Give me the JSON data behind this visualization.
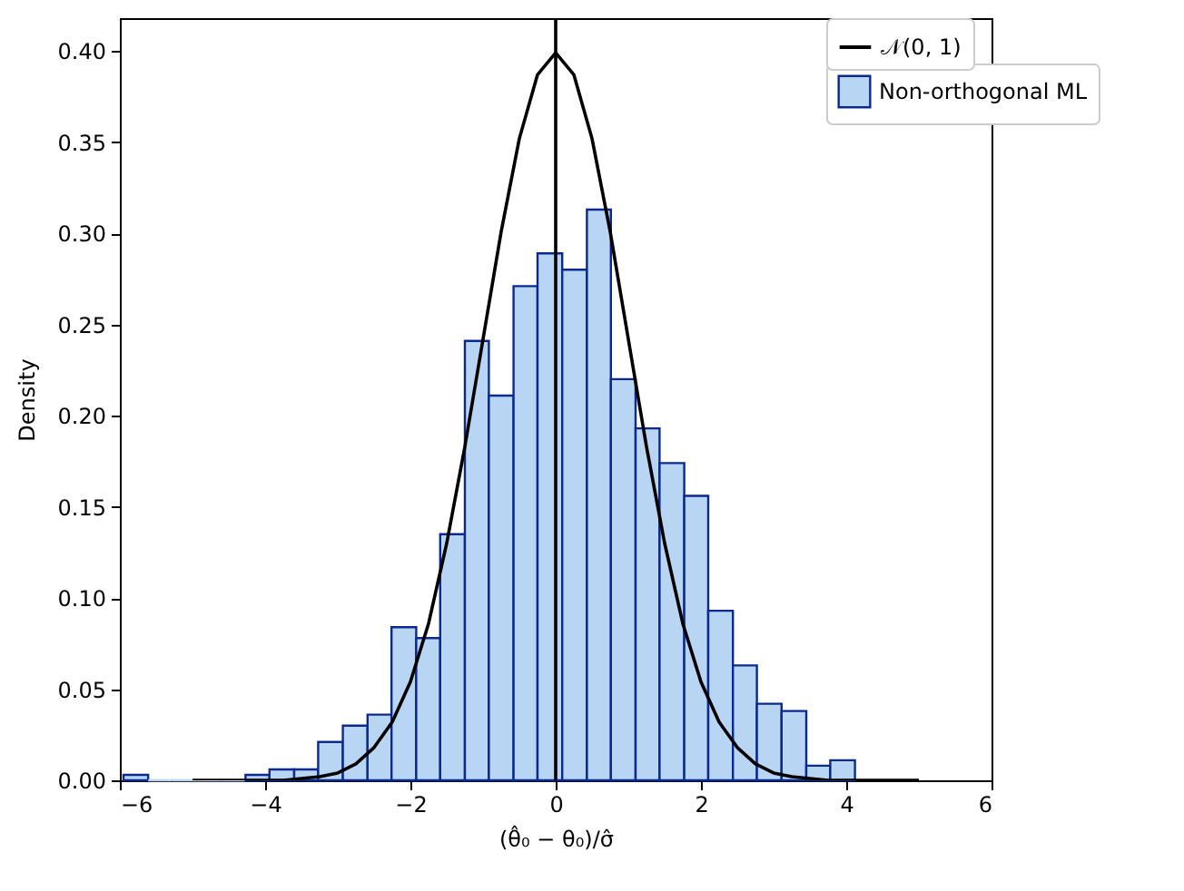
{
  "chart_data": {
    "type": "histogram",
    "xlabel": "(θ̂₀ − θ₀)/σ̂",
    "ylabel": "Density",
    "xlim": [
      -6,
      6
    ],
    "ylim": [
      0,
      0.418
    ],
    "xticks": [
      {
        "value": -6,
        "label": "−6"
      },
      {
        "value": -4,
        "label": "−4"
      },
      {
        "value": -2,
        "label": "−2"
      },
      0,
      2,
      4,
      6
    ],
    "yticks": [
      {
        "value": 0,
        "label": "0.00"
      },
      {
        "value": 0.05,
        "label": "0.05"
      },
      {
        "value": 0.1,
        "label": "0.10"
      },
      {
        "value": 0.15,
        "label": "0.15"
      },
      {
        "value": 0.2,
        "label": "0.20"
      },
      {
        "value": 0.25,
        "label": "0.25"
      },
      {
        "value": 0.3,
        "label": "0.30"
      },
      {
        "value": 0.35,
        "label": "0.35"
      },
      {
        "value": 0.4,
        "label": "0.40"
      }
    ],
    "bins": [
      -5.95,
      -5.61,
      -5.28,
      -4.94,
      -4.61,
      -4.27,
      -3.94,
      -3.6,
      -3.27,
      -2.93,
      -2.59,
      -2.26,
      -1.92,
      -1.59,
      -1.25,
      -0.92,
      -0.58,
      -0.25,
      0.09,
      0.43,
      0.76,
      1.1,
      1.43,
      1.77,
      2.1,
      2.44,
      2.77,
      3.11,
      3.45,
      3.78,
      4.12
    ],
    "legend": "top right",
    "ref_lines": [
      {
        "axis": "x",
        "value": 0,
        "color": "#000000"
      }
    ],
    "series": [
      {
        "type": "line",
        "name": "𝒩(0, 1)",
        "color": "#000000",
        "x": [
          -5,
          -4.5,
          -4,
          -3.75,
          -3.5,
          -3.25,
          -3,
          -2.75,
          -2.5,
          -2.25,
          -2,
          -1.75,
          -1.5,
          -1.25,
          -1,
          -0.75,
          -0.5,
          -0.25,
          0,
          0.25,
          0.5,
          0.75,
          1,
          1.25,
          1.5,
          1.75,
          2,
          2.25,
          2.5,
          2.75,
          3,
          3.25,
          3.5,
          3.75,
          4,
          4.5,
          5
        ],
        "values": [
          0,
          0,
          0,
          0,
          0.001,
          0.002,
          0.004,
          0.009,
          0.018,
          0.032,
          0.054,
          0.086,
          0.13,
          0.183,
          0.242,
          0.301,
          0.352,
          0.387,
          0.399,
          0.387,
          0.352,
          0.301,
          0.242,
          0.183,
          0.13,
          0.086,
          0.054,
          0.032,
          0.018,
          0.009,
          0.004,
          0.002,
          0.001,
          0,
          0,
          0,
          0
        ]
      },
      {
        "name": "Non-orthogonal ML",
        "color": "#b8d6f4",
        "values": [
          0.003,
          0,
          0,
          0,
          0,
          0.003,
          0.006,
          0.006,
          0.021,
          0.03,
          0.036,
          0.084,
          0.078,
          0.135,
          0.241,
          0.211,
          0.271,
          0.289,
          0.28,
          0.313,
          0.22,
          0.193,
          0.174,
          0.156,
          0.093,
          0.063,
          0.042,
          0.038,
          0.008,
          0.011
        ]
      }
    ]
  }
}
